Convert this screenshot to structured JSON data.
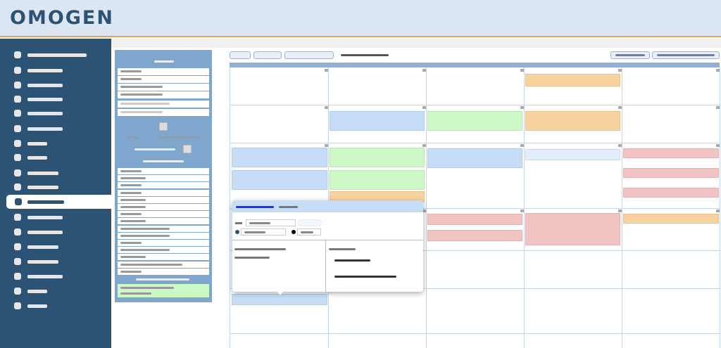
{
  "header": {
    "logo_text": "OMOGEN",
    "logo_color": "#2c5274",
    "accent": "#e8a05a"
  },
  "sidebar": {
    "bg": "#2c5274",
    "item_count": 18,
    "selected_index": 10
  },
  "calendar": {
    "event_colors": {
      "blue": "#c6ddf8",
      "green": "#ccf8c6",
      "orange": "#f8d3a0",
      "pink": "#f2c3c3",
      "light_blue": "#e3eefb"
    },
    "header_color": "#8fb0d4"
  },
  "popup": {
    "header_color": "#c6ddf8",
    "active_tab_color": "#2e2ee6"
  }
}
